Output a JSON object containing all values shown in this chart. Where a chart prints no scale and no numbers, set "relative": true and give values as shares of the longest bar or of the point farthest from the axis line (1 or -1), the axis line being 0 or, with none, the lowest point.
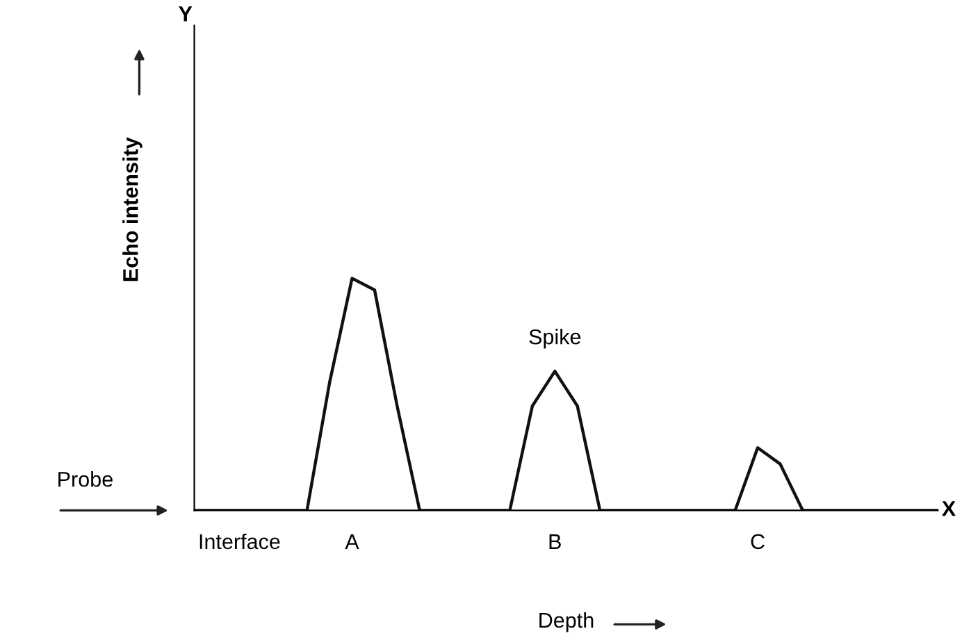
{
  "chart_data": {
    "type": "line",
    "relative": true,
    "xlabel": "Depth",
    "ylabel": "Echo intensity",
    "categories": [
      null,
      null,
      "Interface",
      null,
      null,
      null,
      null,
      "A",
      null,
      null,
      null,
      null,
      null,
      null,
      null,
      null,
      "B",
      null,
      null,
      null,
      null,
      null,
      null,
      null,
      null,
      "C",
      null,
      null,
      null,
      null,
      null,
      null,
      null,
      null
    ],
    "series": [
      {
        "color": "#111111",
        "values": [
          0,
          0,
          0,
          0,
          0,
          0,
          0.55,
          1,
          0.95,
          0.45,
          0,
          0,
          0,
          0,
          0,
          0.45,
          0.6,
          0.45,
          0,
          0,
          0,
          0,
          0,
          0,
          0,
          0.27,
          0.2,
          0,
          0,
          0,
          0,
          0,
          0,
          0
        ]
      }
    ],
    "annotations": [
      "Y",
      "X",
      "Probe",
      {
        "text": "Spike",
        "x": "B",
        "y": 0.6
      }
    ],
    "marker": "none",
    "line_style": "solid",
    "grid": false,
    "legend": false
  }
}
